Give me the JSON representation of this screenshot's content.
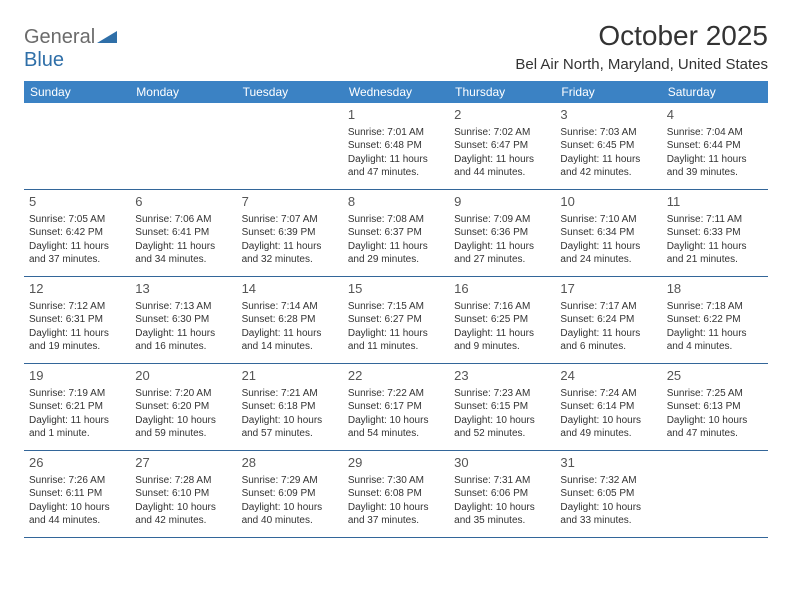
{
  "brand": {
    "name_part1": "General",
    "name_part2": "Blue"
  },
  "title": "October 2025",
  "location": "Bel Air North, Maryland, United States",
  "colors": {
    "header_bg": "#3b82c4",
    "header_text": "#ffffff",
    "row_border": "#336699",
    "text": "#333333",
    "daynum": "#555555",
    "logo_gray": "#6b6b6b",
    "logo_blue": "#2f6fa8",
    "page_bg": "#ffffff"
  },
  "weekdays": [
    "Sunday",
    "Monday",
    "Tuesday",
    "Wednesday",
    "Thursday",
    "Friday",
    "Saturday"
  ],
  "weeks": [
    [
      null,
      null,
      null,
      {
        "d": "1",
        "sr": "7:01 AM",
        "ss": "6:48 PM",
        "dl": "11 hours and 47 minutes."
      },
      {
        "d": "2",
        "sr": "7:02 AM",
        "ss": "6:47 PM",
        "dl": "11 hours and 44 minutes."
      },
      {
        "d": "3",
        "sr": "7:03 AM",
        "ss": "6:45 PM",
        "dl": "11 hours and 42 minutes."
      },
      {
        "d": "4",
        "sr": "7:04 AM",
        "ss": "6:44 PM",
        "dl": "11 hours and 39 minutes."
      }
    ],
    [
      {
        "d": "5",
        "sr": "7:05 AM",
        "ss": "6:42 PM",
        "dl": "11 hours and 37 minutes."
      },
      {
        "d": "6",
        "sr": "7:06 AM",
        "ss": "6:41 PM",
        "dl": "11 hours and 34 minutes."
      },
      {
        "d": "7",
        "sr": "7:07 AM",
        "ss": "6:39 PM",
        "dl": "11 hours and 32 minutes."
      },
      {
        "d": "8",
        "sr": "7:08 AM",
        "ss": "6:37 PM",
        "dl": "11 hours and 29 minutes."
      },
      {
        "d": "9",
        "sr": "7:09 AM",
        "ss": "6:36 PM",
        "dl": "11 hours and 27 minutes."
      },
      {
        "d": "10",
        "sr": "7:10 AM",
        "ss": "6:34 PM",
        "dl": "11 hours and 24 minutes."
      },
      {
        "d": "11",
        "sr": "7:11 AM",
        "ss": "6:33 PM",
        "dl": "11 hours and 21 minutes."
      }
    ],
    [
      {
        "d": "12",
        "sr": "7:12 AM",
        "ss": "6:31 PM",
        "dl": "11 hours and 19 minutes."
      },
      {
        "d": "13",
        "sr": "7:13 AM",
        "ss": "6:30 PM",
        "dl": "11 hours and 16 minutes."
      },
      {
        "d": "14",
        "sr": "7:14 AM",
        "ss": "6:28 PM",
        "dl": "11 hours and 14 minutes."
      },
      {
        "d": "15",
        "sr": "7:15 AM",
        "ss": "6:27 PM",
        "dl": "11 hours and 11 minutes."
      },
      {
        "d": "16",
        "sr": "7:16 AM",
        "ss": "6:25 PM",
        "dl": "11 hours and 9 minutes."
      },
      {
        "d": "17",
        "sr": "7:17 AM",
        "ss": "6:24 PM",
        "dl": "11 hours and 6 minutes."
      },
      {
        "d": "18",
        "sr": "7:18 AM",
        "ss": "6:22 PM",
        "dl": "11 hours and 4 minutes."
      }
    ],
    [
      {
        "d": "19",
        "sr": "7:19 AM",
        "ss": "6:21 PM",
        "dl": "11 hours and 1 minute."
      },
      {
        "d": "20",
        "sr": "7:20 AM",
        "ss": "6:20 PM",
        "dl": "10 hours and 59 minutes."
      },
      {
        "d": "21",
        "sr": "7:21 AM",
        "ss": "6:18 PM",
        "dl": "10 hours and 57 minutes."
      },
      {
        "d": "22",
        "sr": "7:22 AM",
        "ss": "6:17 PM",
        "dl": "10 hours and 54 minutes."
      },
      {
        "d": "23",
        "sr": "7:23 AM",
        "ss": "6:15 PM",
        "dl": "10 hours and 52 minutes."
      },
      {
        "d": "24",
        "sr": "7:24 AM",
        "ss": "6:14 PM",
        "dl": "10 hours and 49 minutes."
      },
      {
        "d": "25",
        "sr": "7:25 AM",
        "ss": "6:13 PM",
        "dl": "10 hours and 47 minutes."
      }
    ],
    [
      {
        "d": "26",
        "sr": "7:26 AM",
        "ss": "6:11 PM",
        "dl": "10 hours and 44 minutes."
      },
      {
        "d": "27",
        "sr": "7:28 AM",
        "ss": "6:10 PM",
        "dl": "10 hours and 42 minutes."
      },
      {
        "d": "28",
        "sr": "7:29 AM",
        "ss": "6:09 PM",
        "dl": "10 hours and 40 minutes."
      },
      {
        "d": "29",
        "sr": "7:30 AM",
        "ss": "6:08 PM",
        "dl": "10 hours and 37 minutes."
      },
      {
        "d": "30",
        "sr": "7:31 AM",
        "ss": "6:06 PM",
        "dl": "10 hours and 35 minutes."
      },
      {
        "d": "31",
        "sr": "7:32 AM",
        "ss": "6:05 PM",
        "dl": "10 hours and 33 minutes."
      },
      null
    ]
  ],
  "labels": {
    "sunrise": "Sunrise: ",
    "sunset": "Sunset: ",
    "daylight": "Daylight: "
  }
}
